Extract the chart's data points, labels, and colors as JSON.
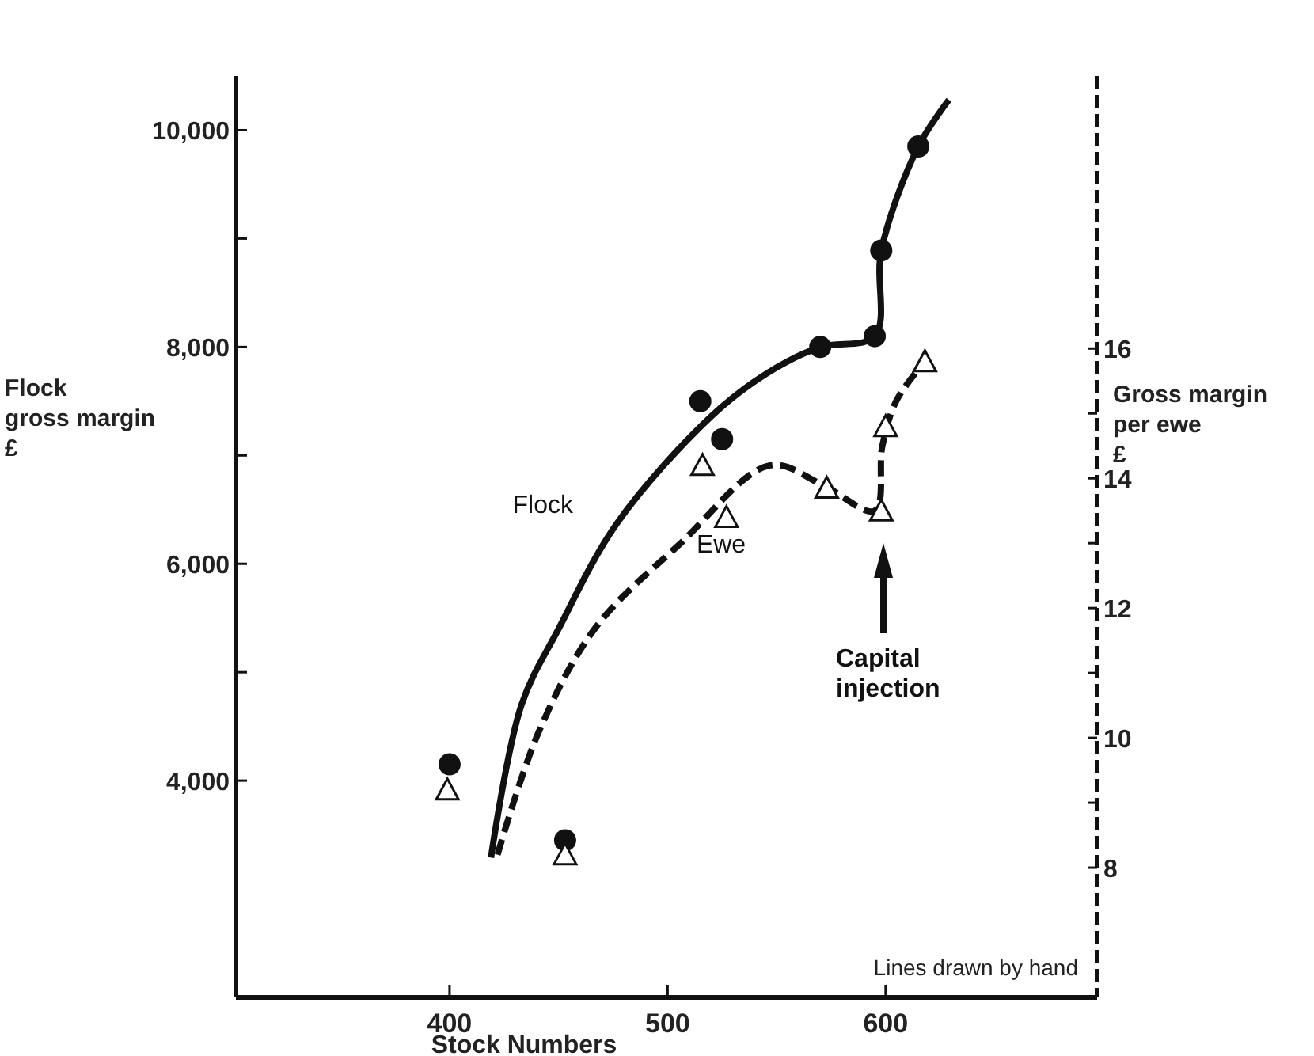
{
  "chart_data": {
    "type": "scatter",
    "xlabel": "Stock  Numbers",
    "ylabel": "Flock\ngross margin\n£",
    "y2label": "Gross margin\nper ewe\n£",
    "xlim": [
      302,
      697
    ],
    "xticks": [
      400,
      500,
      600
    ],
    "ylim": [
      2000,
      10500
    ],
    "yticks": [
      {
        "value": 4000,
        "label": "4,000"
      },
      {
        "value": 5000,
        "label": null
      },
      {
        "value": 6000,
        "label": "6,000"
      },
      {
        "value": 7000,
        "label": null
      },
      {
        "value": 8000,
        "label": "8,000"
      },
      {
        "value": 9000,
        "label": null
      },
      {
        "value": 10000,
        "label": "10,000"
      }
    ],
    "y2lim": [
      6,
      20.2
    ],
    "y2ticks": [
      8,
      {
        "value": 9,
        "label": null
      },
      10,
      {
        "value": 11,
        "label": null
      },
      12,
      {
        "value": 13,
        "label": null
      },
      14,
      {
        "value": 15,
        "label": null
      },
      16
    ],
    "grid": false,
    "series": [
      {
        "color": "#111111",
        "marker": "circle",
        "x": [
          400,
          453,
          515,
          525,
          570,
          595,
          598,
          615
        ],
        "values": [
          4150,
          3450,
          7500,
          7150,
          8000,
          8100,
          8890,
          9850
        ]
      },
      {
        "color": "#111111",
        "marker": "triangle",
        "axis": "y2",
        "x": [
          399,
          453,
          516,
          527,
          573,
          598,
          600,
          618
        ],
        "values": [
          9.2,
          8.2,
          14.2,
          13.4,
          13.85,
          13.5,
          14.8,
          15.8
        ]
      },
      {
        "type": "line",
        "name": "Flock",
        "color": "#111111",
        "line_style": "solid",
        "marker": "none",
        "x": [
          419,
          433,
          450,
          477,
          520,
          545,
          570,
          595,
          598,
          615,
          629
        ],
        "values": [
          3290,
          4700,
          5400,
          6380,
          7360,
          7750,
          8000,
          8100,
          8890,
          9850,
          10280
        ]
      },
      {
        "type": "line",
        "name": "Ewe",
        "color": "#111111",
        "line_style": "dashed",
        "marker": "none",
        "axis": "y2",
        "x": [
          422,
          441,
          467,
          506,
          547,
          571,
          595,
          598.5,
          605,
          618
        ],
        "values": [
          8.2,
          10.1,
          11.7,
          13.0,
          14.2,
          13.9,
          13.5,
          14.5,
          15.2,
          15.8
        ]
      }
    ],
    "annotations": [
      "Capital injection",
      "Lines drawn by hand"
    ]
  }
}
